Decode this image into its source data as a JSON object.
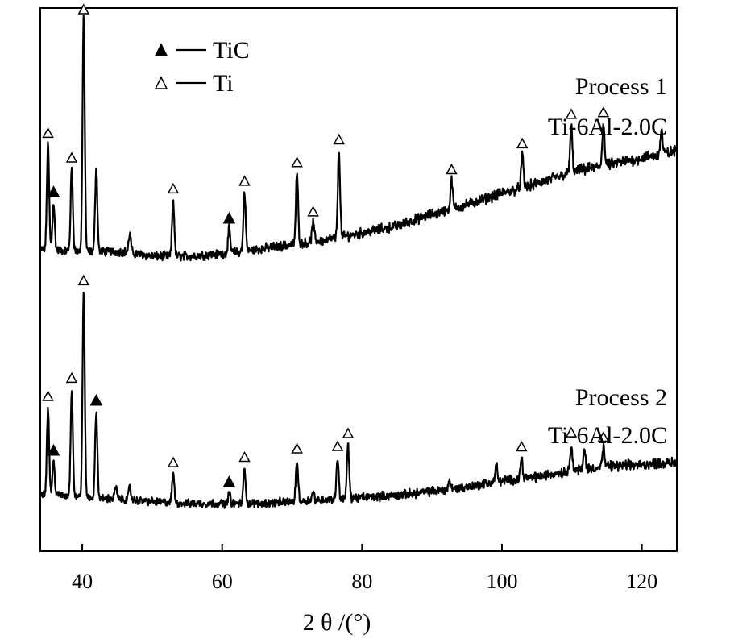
{
  "chart_data": {
    "type": "line",
    "xlabel": "2 θ /(°)",
    "xlim": [
      34,
      125
    ],
    "xticks": [
      40,
      60,
      80,
      100,
      120
    ],
    "ylabel": "",
    "grid": false,
    "legend": {
      "placement": "top-left",
      "entries": [
        {
          "marker": "filled-triangle",
          "label": "TiC"
        },
        {
          "marker": "open-triangle",
          "label": "Ti"
        }
      ]
    },
    "series": [
      {
        "label_lines": [
          "Process 1",
          "Ti-6Al-2.0C"
        ],
        "peaks_ti": [
          35.1,
          38.5,
          40.2,
          53.0,
          63.2,
          70.7,
          73.0,
          76.7,
          92.8,
          102.9,
          109.9,
          114.5
        ],
        "peaks_tic": [
          35.9,
          61.0
        ],
        "profile": [
          [
            34,
            0.03
          ],
          [
            40,
            0.02
          ],
          [
            46,
            0.02
          ],
          [
            50,
            0
          ],
          [
            55,
            0
          ],
          [
            60,
            0.01
          ],
          [
            65,
            0.03
          ],
          [
            70,
            0.05
          ],
          [
            75,
            0.07
          ],
          [
            80,
            0.1
          ],
          [
            85,
            0.13
          ],
          [
            90,
            0.18
          ],
          [
            95,
            0.22
          ],
          [
            100,
            0.27
          ],
          [
            105,
            0.31
          ],
          [
            110,
            0.36
          ],
          [
            115,
            0.39
          ],
          [
            120,
            0.42
          ],
          [
            125,
            0.45
          ]
        ],
        "peaks": [
          [
            35.1,
            0.45
          ],
          [
            35.9,
            0.2
          ],
          [
            38.5,
            0.35
          ],
          [
            40.2,
            1.0
          ],
          [
            42.0,
            0.36
          ],
          [
            46.8,
            0.08
          ],
          [
            53.0,
            0.24
          ],
          [
            61.0,
            0.1
          ],
          [
            63.2,
            0.25
          ],
          [
            70.7,
            0.3
          ],
          [
            73.0,
            0.08
          ],
          [
            76.7,
            0.37
          ],
          [
            92.8,
            0.12
          ],
          [
            102.9,
            0.14
          ],
          [
            109.9,
            0.2
          ],
          [
            114.5,
            0.18
          ],
          [
            122.8,
            0.1
          ]
        ]
      },
      {
        "label_lines": [
          "Process 2",
          "Ti-6Al-2.0C"
        ],
        "peaks_ti": [
          35.1,
          38.5,
          40.2,
          53.0,
          63.2,
          70.7,
          76.5,
          78.0,
          102.8,
          109.9,
          114.5
        ],
        "peaks_tic": [
          35.9,
          42.0,
          61.0
        ],
        "profile": [
          [
            34,
            0.07
          ],
          [
            40,
            0.05
          ],
          [
            46,
            0.04
          ],
          [
            50,
            0.03
          ],
          [
            55,
            0.02
          ],
          [
            60,
            0.02
          ],
          [
            65,
            0.02
          ],
          [
            70,
            0.03
          ],
          [
            75,
            0.04
          ],
          [
            80,
            0.05
          ],
          [
            85,
            0.06
          ],
          [
            90,
            0.08
          ],
          [
            95,
            0.1
          ],
          [
            100,
            0.13
          ],
          [
            105,
            0.15
          ],
          [
            110,
            0.18
          ],
          [
            115,
            0.2
          ],
          [
            120,
            0.21
          ],
          [
            125,
            0.22
          ]
        ],
        "peaks": [
          [
            35.1,
            0.42
          ],
          [
            35.9,
            0.16
          ],
          [
            38.5,
            0.52
          ],
          [
            40.2,
            1.0
          ],
          [
            42.0,
            0.42
          ],
          [
            44.8,
            0.06
          ],
          [
            46.8,
            0.06
          ],
          [
            53.0,
            0.14
          ],
          [
            61.0,
            0.05
          ],
          [
            63.2,
            0.17
          ],
          [
            70.7,
            0.2
          ],
          [
            73.0,
            0.04
          ],
          [
            76.5,
            0.2
          ],
          [
            78.0,
            0.26
          ],
          [
            92.5,
            0.04
          ],
          [
            99.2,
            0.08
          ],
          [
            102.8,
            0.1
          ],
          [
            109.9,
            0.13
          ],
          [
            111.8,
            0.09
          ],
          [
            114.5,
            0.09
          ]
        ]
      }
    ]
  }
}
